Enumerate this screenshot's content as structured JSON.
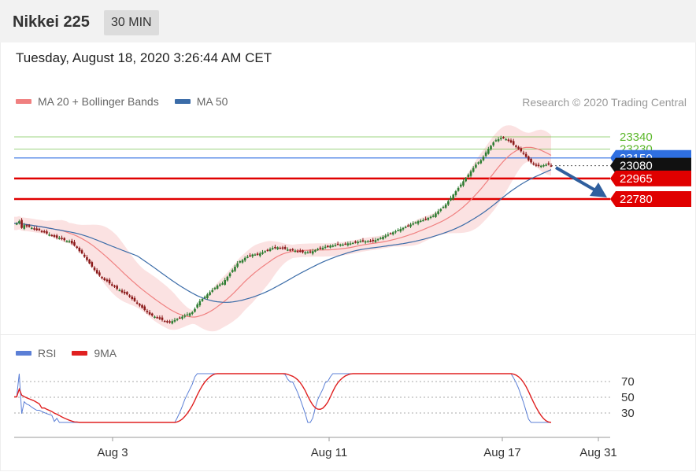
{
  "header": {
    "title": "Nikkei 225",
    "interval": "30 MIN"
  },
  "datetime": "Tuesday, August 18, 2020 3:26:44 AM CET",
  "legend": {
    "ma20": {
      "label": "MA 20 + Bollinger Bands",
      "color": "#f08080"
    },
    "ma50": {
      "label": "MA 50",
      "color": "#3b6ca8"
    }
  },
  "credit": "Research © 2020 Trading Central",
  "rsi_legend": {
    "rsi": {
      "label": "RSI",
      "color": "#5b7fd6"
    },
    "ma9": {
      "label": "9MA",
      "color": "#e02020"
    }
  },
  "colors": {
    "up": "#2e7d32",
    "down": "#8b1a1a",
    "resistance": "#5cb82b",
    "support": "#e00000",
    "pivot": "#2f6fe0"
  },
  "chart_data": {
    "type": "candlestick",
    "y_range": [
      22410,
      23420
    ],
    "levels": [
      {
        "value": 23340,
        "label": "23340",
        "kind": "resistance"
      },
      {
        "value": 23230,
        "label": "23230",
        "kind": "resistance"
      },
      {
        "value": 23150,
        "label": "23150",
        "kind": "pivot"
      },
      {
        "value": 23080,
        "label": "23080",
        "kind": "current"
      },
      {
        "value": 22965,
        "label": "22965",
        "kind": "support"
      },
      {
        "value": 22780,
        "label": "22780",
        "kind": "support"
      }
    ],
    "x_ticks": [
      "Aug 3",
      "Aug 11",
      "Aug 17",
      "Aug 31"
    ],
    "close": [
      22560,
      22560,
      22580,
      22520,
      22545,
      22535,
      22530,
      22520,
      22510,
      22500,
      22500,
      22490,
      22480,
      22470,
      22460,
      22450,
      22440,
      22430,
      22430,
      22420,
      22410,
      22400,
      22400,
      22380,
      22360,
      22340,
      22310,
      22290,
      22260,
      22230,
      22200,
      22170,
      22140,
      22110,
      22090,
      22070,
      22050,
      22040,
      22020,
      22000,
      21990,
      21970,
      21960,
      21940,
      21930,
      21920,
      21900,
      21880,
      21860,
      21840,
      21820,
      21800,
      21780,
      21760,
      21740,
      21730,
      21720,
      21710,
      21700,
      21690,
      21680,
      21670,
      21670,
      21680,
      21690,
      21700,
      21710,
      21720,
      21730,
      21740,
      21750,
      21760,
      21790,
      21830,
      21860,
      21880,
      21900,
      21920,
      21940,
      21960,
      21980,
      22000,
      22010,
      22020,
      22050,
      22080,
      22110,
      22140,
      22170,
      22200,
      22220,
      22230,
      22250,
      22260,
      22270,
      22280,
      22280,
      22280,
      22290,
      22300,
      22310,
      22320,
      22330,
      22340,
      22340,
      22345,
      22340,
      22335,
      22330,
      22325,
      22320,
      22320,
      22315,
      22310,
      22305,
      22300,
      22300,
      22300,
      22300,
      22310,
      22320,
      22330,
      22335,
      22340,
      22350,
      22355,
      22360,
      22360,
      22365,
      22370,
      22370,
      22370,
      22375,
      22380,
      22380,
      22385,
      22390,
      22395,
      22400,
      22400,
      22400,
      22400,
      22400,
      22400,
      22410,
      22420,
      22430,
      22440,
      22450,
      22460,
      22470,
      22480,
      22490,
      22500,
      22510,
      22520,
      22530,
      22540,
      22550,
      22560,
      22570,
      22580,
      22585,
      22590,
      22600,
      22610,
      22620,
      22630,
      22650,
      22670,
      22690,
      22710,
      22730,
      22760,
      22790,
      22820,
      22850,
      22880,
      22910,
      22940,
      22970,
      23000,
      23030,
      23060,
      23090,
      23110,
      23130,
      23160,
      23200,
      23230,
      23260,
      23290,
      23310,
      23320,
      23330,
      23330,
      23320,
      23305,
      23290,
      23270,
      23250,
      23230,
      23210,
      23190,
      23160,
      23130,
      23110,
      23090,
      23080,
      23080,
      23080,
      23085,
      23090,
      23090,
      23080
    ],
    "rsi": {
      "levels": [
        70,
        50,
        30
      ],
      "range": [
        0,
        100
      ]
    }
  }
}
